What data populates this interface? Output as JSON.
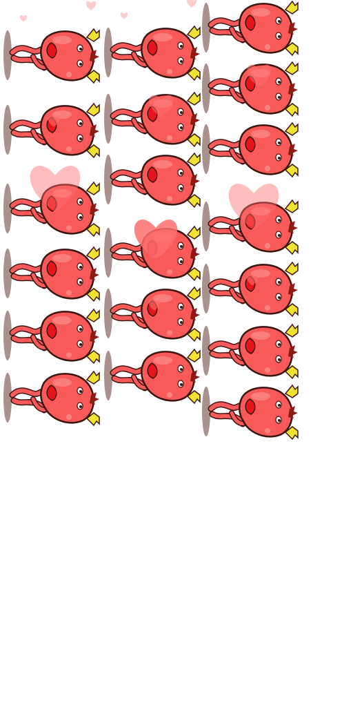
{
  "sprite_sheet": {
    "background": "#ffffff",
    "character": "red-heart-creature",
    "colors": {
      "body": "#f75a58",
      "outline": "#3c1410",
      "mouth": "#e8141c",
      "ear": "#f2e234",
      "shadow": "#9a7e7a",
      "heart": "#ff6f6f",
      "highlight": "#ff9c9a"
    },
    "columns": [
      {
        "frames": [
          {
            "hearts": "sparkles"
          },
          {
            "hearts": "small"
          },
          {
            "hearts": "large-faded"
          },
          {
            "hearts": "none"
          },
          {
            "hearts": "none"
          },
          {
            "hearts": "none"
          }
        ]
      },
      {
        "frames": [
          {
            "hearts": "sparkles"
          },
          {
            "hearts": "medium"
          },
          {
            "hearts": "none"
          },
          {
            "hearts": "large"
          },
          {
            "hearts": "small"
          },
          {
            "hearts": "none"
          }
        ]
      },
      {
        "frames": [
          {
            "hearts": "none"
          },
          {
            "hearts": "medium"
          },
          {
            "hearts": "none"
          },
          {
            "hearts": "large-faded"
          },
          {
            "hearts": "small"
          },
          {
            "hearts": "none"
          },
          {
            "hearts": "none"
          }
        ]
      }
    ]
  }
}
